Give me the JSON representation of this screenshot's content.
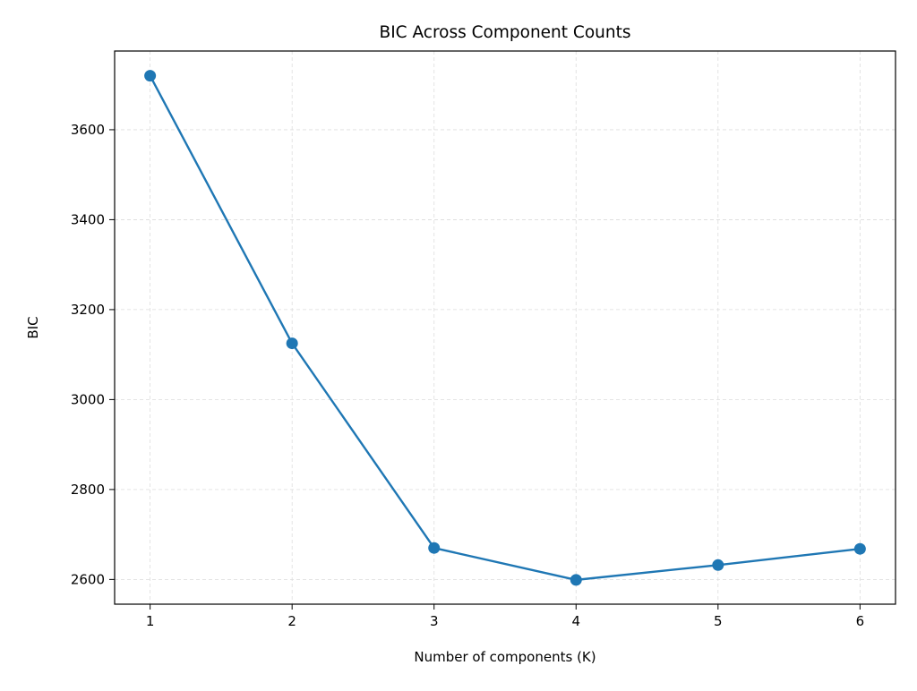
{
  "chart_data": {
    "type": "line",
    "title": "BIC Across Component Counts",
    "xlabel": "Number of components (K)",
    "ylabel": "BIC",
    "x": [
      1,
      2,
      3,
      4,
      5,
      6
    ],
    "series": [
      {
        "values": [
          3720,
          3125,
          2670,
          2599,
          2632,
          2668
        ],
        "color": "#1f77b4",
        "marker": "circle"
      }
    ],
    "xlim": [
      0.75,
      6.25
    ],
    "ylim": [
      2545,
      3775
    ],
    "xticks": [
      1,
      2,
      3,
      4,
      5,
      6
    ],
    "yticks": [
      2600,
      2800,
      3000,
      3200,
      3400,
      3600
    ],
    "grid": true,
    "legend": "none"
  }
}
